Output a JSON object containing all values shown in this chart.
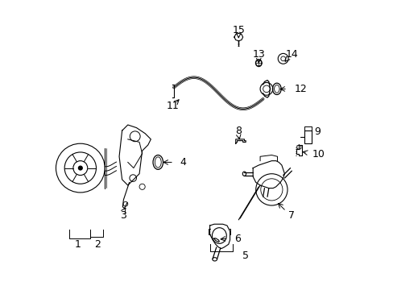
{
  "title": "",
  "background_color": "#ffffff",
  "line_color": "#000000",
  "label_color": "#000000",
  "figsize": [
    4.89,
    3.6
  ],
  "dpi": 100,
  "fontsize_labels": 9,
  "fontsize_title": 7
}
